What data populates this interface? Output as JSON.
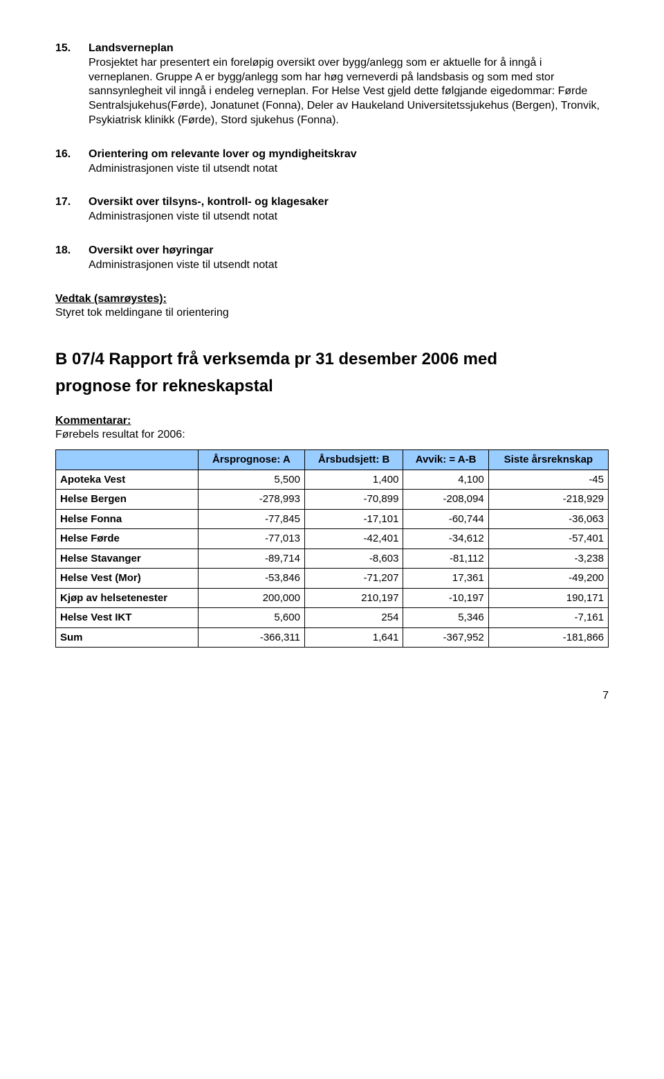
{
  "items": [
    {
      "num": "15.",
      "title": "Landsverneplan",
      "body": "Prosjektet har presentert ein foreløpig oversikt over bygg/anlegg som er aktuelle for å inngå i verneplanen. Gruppe A er bygg/anlegg som har høg verneverdi på landsbasis og som med stor sannsynlegheit vil inngå i endeleg verneplan. For Helse Vest gjeld dette følgjande eigedommar: Førde Sentralsjukehus(Førde), Jonatunet (Fonna), Deler av Haukeland Universitetssjukehus (Bergen), Tronvik, Psykiatrisk klinikk (Førde), Stord sjukehus (Fonna)."
    },
    {
      "num": "16.",
      "title": "Orientering om relevante lover og myndigheitskrav",
      "sub": "Administrasjonen viste til utsendt notat"
    },
    {
      "num": "17.",
      "title": "Oversikt over tilsyns-, kontroll- og klagesaker",
      "sub": "Administrasjonen viste til utsendt notat"
    },
    {
      "num": "18.",
      "title": "Oversikt over høyringar",
      "sub": "Administrasjonen viste til utsendt notat"
    }
  ],
  "vedtak_label": "Vedtak (samrøystes):",
  "vedtak_text": "Styret tok meldingane til orientering",
  "h2_line1": "B 07/4 Rapport frå verksemda pr 31 desember 2006 med",
  "h2_line2": "prognose for rekneskapstal",
  "kommentarar_label": "Kommentarar:",
  "forebels_text": "Førebels resultat for 2006:",
  "table": {
    "header_bg": "#99ccff",
    "border_color": "#000000",
    "font_family": "Verdana",
    "columns": [
      "",
      "Årsprognose: A",
      "Årsbudsjett: B",
      "Avvik: = A-B",
      "Siste årsreknskap"
    ],
    "rows": [
      [
        "Apoteka Vest",
        "5,500",
        "1,400",
        "4,100",
        "-45"
      ],
      [
        "Helse Bergen",
        "-278,993",
        "-70,899",
        "-208,094",
        "-218,929"
      ],
      [
        "Helse Fonna",
        "-77,845",
        "-17,101",
        "-60,744",
        "-36,063"
      ],
      [
        "Helse Førde",
        "-77,013",
        "-42,401",
        "-34,612",
        "-57,401"
      ],
      [
        "Helse Stavanger",
        "-89,714",
        "-8,603",
        "-81,112",
        "-3,238"
      ],
      [
        "Helse Vest (Mor)",
        "-53,846",
        "-71,207",
        "17,361",
        "-49,200"
      ],
      [
        "Kjøp av helsetenester",
        "200,000",
        "210,197",
        "-10,197",
        "190,171"
      ],
      [
        "Helse Vest IKT",
        "5,600",
        "254",
        "5,346",
        "-7,161"
      ],
      [
        "Sum",
        "-366,311",
        "1,641",
        "-367,952",
        "-181,866"
      ]
    ]
  },
  "pagenum": "7"
}
